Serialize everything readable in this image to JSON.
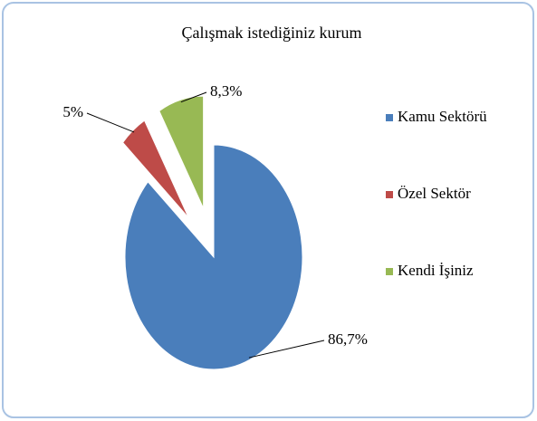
{
  "chart_data": {
    "type": "pie",
    "title": "Çalışmak istediğiniz kurum",
    "categories": [
      "Kamu Sektörü",
      "Özel Sektör",
      "Kendi İşiniz"
    ],
    "values": [
      86.7,
      5,
      8.3
    ],
    "value_labels": [
      "86,7%",
      "5%",
      "8,3%"
    ],
    "colors": [
      "#4a7ebb",
      "#be4b48",
      "#98b954"
    ],
    "legend": "right"
  }
}
